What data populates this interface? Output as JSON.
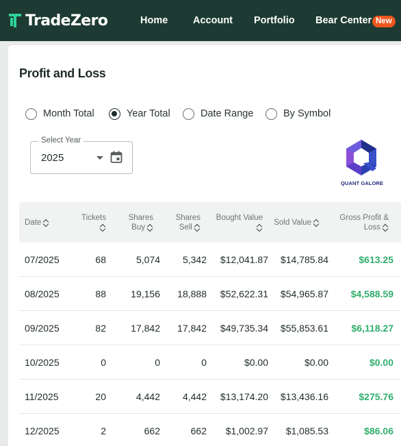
{
  "nav": {
    "brand": "TradeZero",
    "items": [
      "Home",
      "Account",
      "Portfolio",
      "Bear Center"
    ],
    "badge": "New"
  },
  "page": {
    "title": "Profit and Loss"
  },
  "filters": {
    "options": [
      "Month Total",
      "Year Total",
      "Date Range",
      "By Symbol"
    ],
    "selected": "Year Total"
  },
  "year_select": {
    "label": "Select Year",
    "value": "2025"
  },
  "sponsor": {
    "text": "QUANT GALORE"
  },
  "table": {
    "headers": {
      "date": "Date",
      "tickets": "Tickets",
      "shares_buy": [
        "Shares",
        "Buy"
      ],
      "shares_sell": [
        "Shares",
        "Sell"
      ],
      "bought": "Bought Value",
      "sold": "Sold Value",
      "gross": [
        "Gross Profit &",
        "Loss"
      ]
    },
    "rows": [
      {
        "date": "07/2025",
        "tickets": "68",
        "buy": "5,074",
        "sell": "5,342",
        "bought": "$12,041.87",
        "sold": "$14,785.84",
        "gross": "$613.25"
      },
      {
        "date": "08/2025",
        "tickets": "88",
        "buy": "19,156",
        "sell": "18,888",
        "bought": "$52,622.31",
        "sold": "$54,965.87",
        "gross": "$4,588.59"
      },
      {
        "date": "09/2025",
        "tickets": "82",
        "buy": "17,842",
        "sell": "17,842",
        "bought": "$49,735.34",
        "sold": "$55,853.61",
        "gross": "$6,118.27"
      },
      {
        "date": "10/2025",
        "tickets": "0",
        "buy": "0",
        "sell": "0",
        "bought": "$0.00",
        "sold": "$0.00",
        "gross": "$0.00"
      },
      {
        "date": "11/2025",
        "tickets": "20",
        "buy": "4,442",
        "sell": "4,442",
        "bought": "$13,174.20",
        "sold": "$13,436.16",
        "gross": "$275.76"
      },
      {
        "date": "12/2025",
        "tickets": "2",
        "buy": "662",
        "sell": "662",
        "bought": "$1,002.97",
        "sold": "$1,085.53",
        "gross": "$86.06"
      }
    ]
  },
  "colors": {
    "nav_bg": "#1d3b33",
    "badge": "#f0561e",
    "profit": "#2faf6c",
    "logo_accent": "#2fd39a"
  }
}
